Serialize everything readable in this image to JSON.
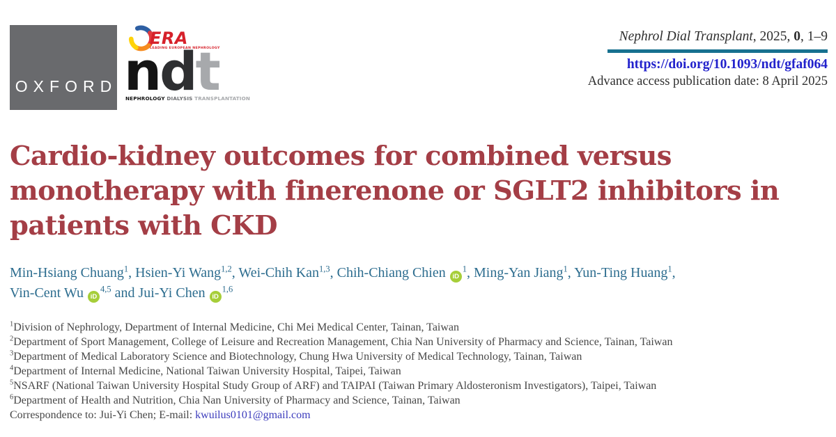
{
  "masthead": {
    "oxford_label": "OXFORD",
    "era_label": "ERA",
    "era_tagline": "LEADING EUROPEAN NEPHROLOGY",
    "ndt_letters": [
      "n",
      "d",
      "t"
    ],
    "ndt_subtitle_words": [
      "NEPHROLOGY",
      "DIALYSIS",
      "TRANSPLANTATION"
    ],
    "journal_name": "Nephrol Dial Transplant",
    "citation_mid": ", 2025, ",
    "volume": "0",
    "citation_tail": ", 1–9",
    "doi": "https://doi.org/10.1093/ndt/gfaf064",
    "advance_access": "Advance access publication date: 8 April 2025"
  },
  "title_lines": [
    "Cardio-kidney outcomes for combined versus",
    "monotherapy with finerenone or SGLT2 inhibitors in",
    "patients with CKD"
  ],
  "orcid_icon_label": "iD",
  "author_lines": [
    [
      {
        "name": "Min-Hsiang Chuang",
        "sup": "1",
        "orcid": false,
        "sep": ", "
      },
      {
        "name": "Hsien-Yi Wang",
        "sup": "1,2",
        "orcid": false,
        "sep": ", "
      },
      {
        "name": "Wei-Chih Kan",
        "sup": "1,3",
        "orcid": false,
        "sep": ", "
      },
      {
        "name": "Chih-Chiang Chien",
        "sup": "1",
        "orcid": true,
        "sep": ", "
      },
      {
        "name": "Ming-Yan Jiang",
        "sup": "1",
        "orcid": false,
        "sep": ", "
      },
      {
        "name": "Yun-Ting Huang",
        "sup": "1",
        "orcid": false,
        "sep": ","
      }
    ],
    [
      {
        "name": "Vin-Cent Wu",
        "sup": "4,5",
        "orcid": true,
        "sep": " and "
      },
      {
        "name": "Jui-Yi Chen",
        "sup": "1,6",
        "orcid": true,
        "sep": ""
      }
    ]
  ],
  "affiliations": [
    {
      "sup": "1",
      "text": "Division of Nephrology, Department of Internal Medicine, Chi Mei Medical Center, Tainan, Taiwan"
    },
    {
      "sup": "2",
      "text": "Department of Sport Management, College of Leisure and Recreation Management, Chia Nan University of Pharmacy and Science, Tainan, Taiwan"
    },
    {
      "sup": "3",
      "text": "Department of Medical Laboratory Science and Biotechnology, Chung Hwa University of Medical Technology, Tainan, Taiwan"
    },
    {
      "sup": "4",
      "text": "Department of Internal Medicine, National Taiwan University Hospital, Taipei, Taiwan"
    },
    {
      "sup": "5",
      "text": "NSARF (National Taiwan University Hospital Study Group of ARF) and TAIPAI (Taiwan Primary Aldosteronism Investigators), Taipei, Taiwan"
    },
    {
      "sup": "6",
      "text": "Department of Health and Nutrition, Chia Nan University of Pharmacy and Science, Tainan, Taiwan"
    }
  ],
  "correspondence": {
    "label": "Correspondence to: Jui-Yi Chen; E-mail: ",
    "email": "kwuilus0101@gmail.com"
  },
  "colors": {
    "title_red": "#a43e46",
    "author_teal": "#2d6d8f",
    "rule_teal": "#17718f",
    "doi_blue": "#2222cc",
    "email_blue": "#3d3dbd",
    "orcid_green": "#a6ce39",
    "oxford_gray": "#696a6d",
    "era_red": "#d6212a"
  }
}
